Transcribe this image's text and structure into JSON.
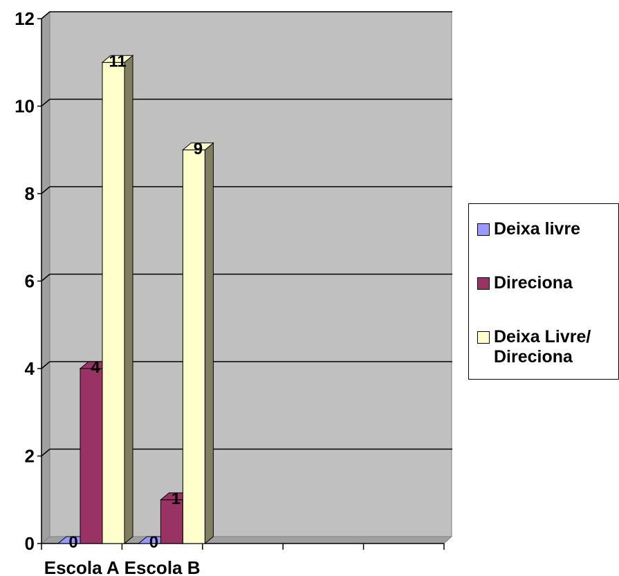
{
  "chart_data": {
    "type": "bar",
    "categories": [
      "Escola A",
      "Escola B",
      "",
      "",
      ""
    ],
    "series": [
      {
        "name": "Deixa livre",
        "values": [
          0,
          0,
          null,
          null,
          null
        ],
        "color": "#9999ff",
        "side": "#6666cc"
      },
      {
        "name": "Direciona",
        "values": [
          4,
          1,
          null,
          null,
          null
        ],
        "color": "#993366",
        "side": "#6b2347"
      },
      {
        "name": "Deixa Livre/ Direciona",
        "values": [
          11,
          9,
          null,
          null,
          null
        ],
        "color": "#ffffcc",
        "side": "#808060"
      }
    ],
    "y_ticks": [
      "0",
      "2",
      "4",
      "6",
      "8",
      "10",
      "12"
    ],
    "ylim": [
      0,
      12
    ],
    "grid": true,
    "legend_position": "right",
    "plot_background": "#c0c0c0",
    "title": "",
    "xlabel": "",
    "ylabel": ""
  }
}
